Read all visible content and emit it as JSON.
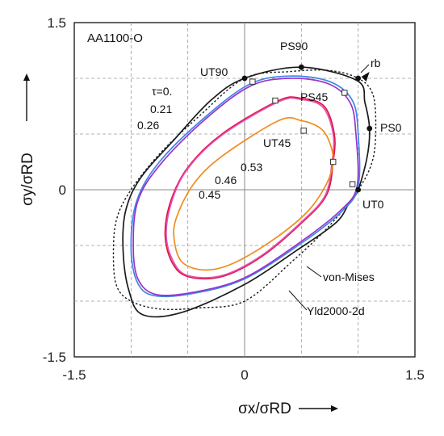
{
  "chart_data": {
    "type": "line",
    "title": "AA1100-O",
    "xlabel": "σx/σRD",
    "ylabel": "σy/σRD",
    "xlim": [
      -1.5,
      1.5
    ],
    "ylim": [
      -1.5,
      1.5
    ],
    "x_ticks": [
      "-1.5",
      "0",
      "1.5"
    ],
    "y_ticks": [
      "-1.5",
      "0",
      "1.5"
    ],
    "grid": true,
    "grid_step": 0.5,
    "colors": {
      "yld2000": "#1a1a1a",
      "vonmises": "#1a1a1a",
      "tau0": "#1a1a1a",
      "tau021": "#3f86e6",
      "tau026": "#9933cc",
      "tau046": "#e0143c",
      "tau045": "#e64db3",
      "tau053": "#f08c1e"
    },
    "series": [
      {
        "key": "yld2000",
        "name": "Yld2000-2d",
        "dashed": false,
        "points": [
          [
            1.0,
            0.0
          ],
          [
            1.08,
            0.3
          ],
          [
            1.1,
            0.55
          ],
          [
            1.06,
            0.78
          ],
          [
            0.99,
            0.98
          ],
          [
            0.5,
            1.1
          ],
          [
            0.0,
            1.0
          ],
          [
            -0.3,
            0.8
          ],
          [
            -0.62,
            0.45
          ],
          [
            -0.92,
            0.1
          ],
          [
            -1.05,
            -0.2
          ],
          [
            -1.07,
            -0.55
          ],
          [
            -1.02,
            -0.9
          ],
          [
            -0.9,
            -1.12
          ],
          [
            -0.55,
            -1.1
          ],
          [
            0.0,
            -0.85
          ],
          [
            0.45,
            -0.55
          ],
          [
            0.8,
            -0.3
          ],
          [
            0.92,
            -0.12
          ]
        ]
      },
      {
        "key": "vonmises",
        "name": "von-Mises",
        "dashed": true,
        "points": [
          [
            1.155,
            0.577
          ],
          [
            1.127,
            0.863
          ],
          [
            1.0,
            1.0
          ],
          [
            0.747,
            1.07
          ],
          [
            0.406,
            1.061
          ],
          [
            0.0,
            1.0
          ],
          [
            -0.406,
            0.655
          ],
          [
            -0.747,
            0.323
          ],
          [
            -1.0,
            0.0
          ],
          [
            -1.127,
            -0.264
          ],
          [
            -1.155,
            -0.577
          ],
          [
            -1.127,
            -0.863
          ],
          [
            -1.0,
            -1.0
          ],
          [
            -0.747,
            -1.07
          ],
          [
            -0.406,
            -1.061
          ],
          [
            0.0,
            -1.0
          ],
          [
            0.406,
            -0.655
          ],
          [
            0.747,
            -0.323
          ],
          [
            1.0,
            0.0
          ],
          [
            1.127,
            0.264
          ]
        ]
      },
      {
        "key": "tau021",
        "name": "0.21",
        "dashed": false,
        "points": [
          [
            1.0,
            0.03
          ],
          [
            1.0,
            0.5
          ],
          [
            0.95,
            0.8
          ],
          [
            0.75,
            0.97
          ],
          [
            0.4,
            1.02
          ],
          [
            0.05,
            0.95
          ],
          [
            -0.35,
            0.65
          ],
          [
            -0.75,
            0.25
          ],
          [
            -0.95,
            -0.1
          ],
          [
            -1.0,
            -0.5
          ],
          [
            -0.95,
            -0.82
          ],
          [
            -0.8,
            -0.95
          ],
          [
            -0.45,
            -0.93
          ],
          [
            0.0,
            -0.8
          ],
          [
            0.5,
            -0.48
          ],
          [
            0.85,
            -0.2
          ]
        ]
      },
      {
        "key": "tau026",
        "name": "0.26",
        "dashed": false,
        "points": [
          [
            0.99,
            0.03
          ],
          [
            0.98,
            0.5
          ],
          [
            0.93,
            0.78
          ],
          [
            0.74,
            0.95
          ],
          [
            0.4,
            1.0
          ],
          [
            0.05,
            0.93
          ],
          [
            -0.35,
            0.63
          ],
          [
            -0.74,
            0.23
          ],
          [
            -0.94,
            -0.1
          ],
          [
            -0.98,
            -0.5
          ],
          [
            -0.94,
            -0.8
          ],
          [
            -0.78,
            -0.94
          ],
          [
            -0.45,
            -0.92
          ],
          [
            0.0,
            -0.79
          ],
          [
            0.49,
            -0.47
          ],
          [
            0.84,
            -0.19
          ]
        ]
      },
      {
        "key": "tau046",
        "name": "0.46",
        "dashed": false,
        "points": [
          [
            0.78,
            0.25
          ],
          [
            0.79,
            0.5
          ],
          [
            0.7,
            0.75
          ],
          [
            0.5,
            0.82
          ],
          [
            0.3,
            0.8
          ],
          [
            -0.2,
            0.5
          ],
          [
            -0.5,
            0.2
          ],
          [
            -0.65,
            -0.1
          ],
          [
            -0.7,
            -0.4
          ],
          [
            -0.64,
            -0.65
          ],
          [
            -0.5,
            -0.78
          ],
          [
            -0.2,
            -0.78
          ],
          [
            0.15,
            -0.6
          ],
          [
            0.5,
            -0.3
          ],
          [
            0.72,
            -0.05
          ]
        ]
      },
      {
        "key": "tau045",
        "name": "0.45",
        "dashed": false,
        "points": [
          [
            0.77,
            0.25
          ],
          [
            0.78,
            0.5
          ],
          [
            0.69,
            0.74
          ],
          [
            0.5,
            0.81
          ],
          [
            0.3,
            0.79
          ],
          [
            -0.2,
            0.49
          ],
          [
            -0.5,
            0.19
          ],
          [
            -0.64,
            -0.1
          ],
          [
            -0.69,
            -0.4
          ],
          [
            -0.63,
            -0.64
          ],
          [
            -0.5,
            -0.77
          ],
          [
            -0.2,
            -0.77
          ],
          [
            0.15,
            -0.59
          ],
          [
            0.5,
            -0.29
          ],
          [
            0.71,
            -0.05
          ]
        ]
      },
      {
        "key": "tau053",
        "name": "0.53",
        "dashed": false,
        "points": [
          [
            0.78,
            0.25
          ],
          [
            0.75,
            0.42
          ],
          [
            0.67,
            0.55
          ],
          [
            0.5,
            0.62
          ],
          [
            0.3,
            0.62
          ],
          [
            -0.2,
            0.3
          ],
          [
            -0.45,
            0.05
          ],
          [
            -0.6,
            -0.25
          ],
          [
            -0.62,
            -0.45
          ],
          [
            -0.55,
            -0.65
          ],
          [
            -0.35,
            -0.72
          ],
          [
            -0.1,
            -0.66
          ],
          [
            0.25,
            -0.45
          ],
          [
            0.55,
            -0.2
          ],
          [
            0.72,
            0.05
          ]
        ]
      }
    ],
    "points": [
      {
        "label": "UT0",
        "x": 1.0,
        "y": 0.0,
        "filled": true
      },
      {
        "label": "PS0",
        "x": 1.1,
        "y": 0.55,
        "filled": true
      },
      {
        "label": "rb",
        "x": 1.0,
        "y": 1.0,
        "filled": true
      },
      {
        "label": "PS90",
        "x": 0.5,
        "y": 1.1,
        "filled": true
      },
      {
        "label": "UT90",
        "x": 0.0,
        "y": 1.0,
        "filled": true
      },
      {
        "label": "",
        "x": 0.07,
        "y": 0.97,
        "filled": false
      },
      {
        "label": "",
        "x": 0.88,
        "y": 0.87,
        "filled": false
      },
      {
        "label": "",
        "x": 0.95,
        "y": 0.05,
        "filled": false
      },
      {
        "label": "PS45",
        "x": 0.27,
        "y": 0.8,
        "filled": false
      },
      {
        "label": "UT45",
        "x": 0.52,
        "y": 0.53,
        "filled": false
      },
      {
        "label": "",
        "x": 0.78,
        "y": 0.25,
        "filled": false
      }
    ],
    "annotations": {
      "title": "AA1100-O",
      "ps90": "PS90",
      "rb": "rb",
      "ut90": "UT90",
      "ps45": "PS45",
      "ps0": "PS0",
      "ut45": "UT45",
      "ut0": "UT0",
      "tau0": "τ=0.",
      "tau021": "0.21",
      "tau026": "0.26",
      "tau053": "0.53",
      "tau046": "0.46",
      "tau045": "0.45",
      "vonmises": "von-Mises",
      "yld2000": "Yld2000-2d"
    }
  }
}
